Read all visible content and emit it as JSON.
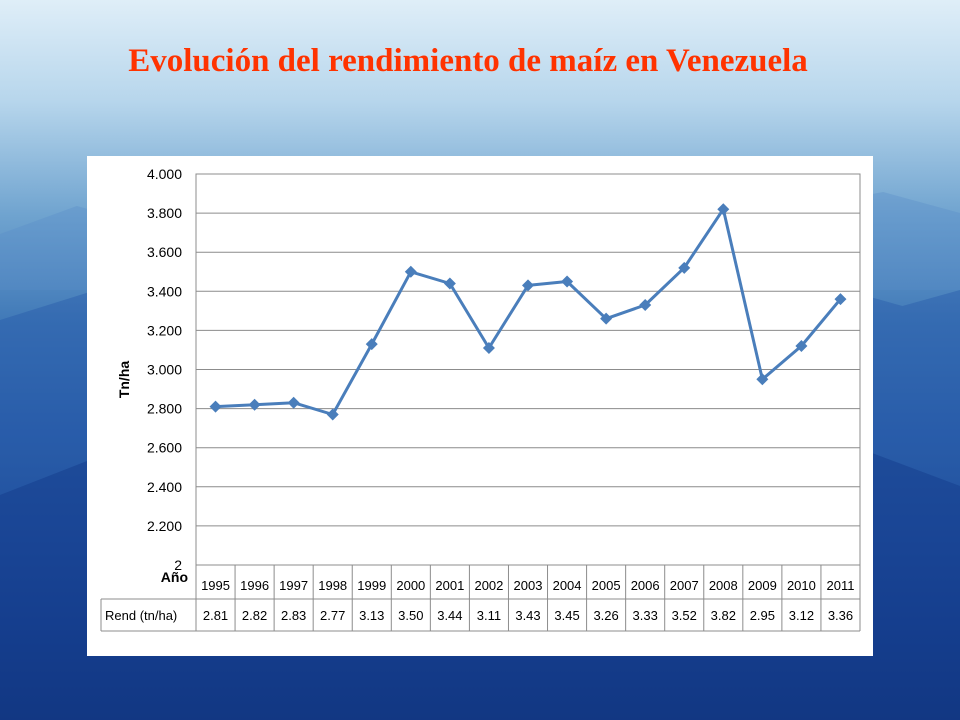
{
  "title": "Evolución del rendimiento de maíz en Venezuela",
  "chart_data": {
    "type": "line",
    "ylabel": "Tn/ha",
    "x_header": "Año",
    "row_label": "Rend (tn/ha)",
    "categories": [
      "1995",
      "1996",
      "1997",
      "1998",
      "1999",
      "2000",
      "2001",
      "2002",
      "2003",
      "2004",
      "2005",
      "2006",
      "2007",
      "2008",
      "2009",
      "2010",
      "2011"
    ],
    "values": [
      2.81,
      2.82,
      2.83,
      2.77,
      3.13,
      3.5,
      3.44,
      3.11,
      3.43,
      3.45,
      3.26,
      3.33,
      3.52,
      3.82,
      2.95,
      3.12,
      3.36
    ],
    "table_values": [
      "2.81",
      "2.82",
      "2.83",
      "2.77",
      "3.13",
      "3.50",
      "3.44",
      "3.11",
      "3.43",
      "3.45",
      "3.26",
      "3.33",
      "3.52",
      "3.82",
      "2.95",
      "3.12",
      "3.36"
    ],
    "y_ticks": [
      2.0,
      2.2,
      2.4,
      2.6,
      2.8,
      3.0,
      3.2,
      3.4,
      3.6,
      3.8,
      4.0
    ],
    "y_tick_labels": [
      "2",
      "2.200",
      "2.400",
      "2.600",
      "2.800",
      "3.000",
      "3.200",
      "3.400",
      "3.600",
      "3.800",
      "4.000"
    ],
    "ylim": [
      2.0,
      4.0
    ],
    "grid": true,
    "legend": "none",
    "line_color": "#4a7ebb",
    "marker": "diamond"
  }
}
